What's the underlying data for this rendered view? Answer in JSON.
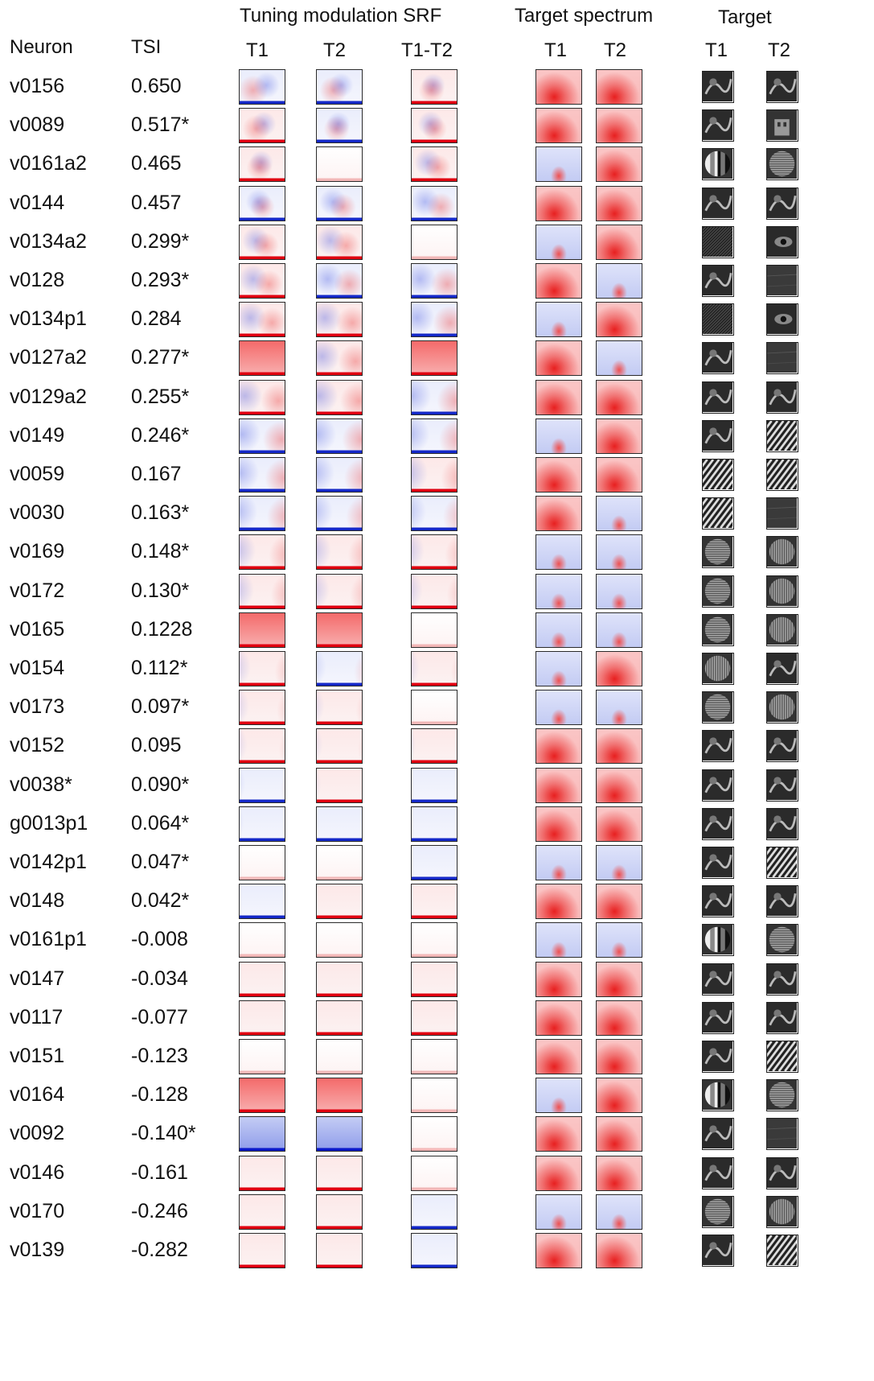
{
  "headers": {
    "group_srf": "Tuning modulation SRF",
    "group_spectrum": "Target spectrum",
    "group_target": "Target",
    "neuron": "Neuron",
    "tsi": "TSI",
    "srf_t1": "T1",
    "srf_t2": "T2",
    "srf_diff": "T1-T2",
    "spec_t1": "T1",
    "spec_t2": "T2",
    "target_t1": "T1",
    "target_t2": "T2"
  },
  "rows": [
    {
      "neuron": "v0156",
      "tsi": "0.650",
      "maps": [
        "b",
        "b",
        "r"
      ],
      "spec": [
        "r",
        "r"
      ],
      "targets": [
        "texture",
        "texture"
      ]
    },
    {
      "neuron": "v0089",
      "tsi": "0.517*",
      "maps": [
        "r",
        "b",
        "r"
      ],
      "spec": [
        "r",
        "r"
      ],
      "targets": [
        "texture",
        "building"
      ]
    },
    {
      "neuron": "v0161a2",
      "tsi": "0.465",
      "maps": [
        "r",
        "w",
        "r"
      ],
      "spec": [
        "b",
        "r"
      ],
      "targets": [
        "grating-radial",
        "grating-h"
      ]
    },
    {
      "neuron": "v0144",
      "tsi": "0.457",
      "maps": [
        "b",
        "b",
        "b"
      ],
      "spec": [
        "r",
        "r"
      ],
      "targets": [
        "texture",
        "texture"
      ]
    },
    {
      "neuron": "v0134a2",
      "tsi": "0.299*",
      "maps": [
        "r",
        "r",
        "w"
      ],
      "spec": [
        "b",
        "r"
      ],
      "targets": [
        "grating-diag",
        "eye"
      ]
    },
    {
      "neuron": "v0128",
      "tsi": "0.293*",
      "maps": [
        "r",
        "b",
        "b"
      ],
      "spec": [
        "r",
        "b"
      ],
      "targets": [
        "texture",
        "wood"
      ]
    },
    {
      "neuron": "v0134p1",
      "tsi": "0.284",
      "maps": [
        "r",
        "r",
        "b"
      ],
      "spec": [
        "b",
        "r"
      ],
      "targets": [
        "grating-diag",
        "eye"
      ]
    },
    {
      "neuron": "v0127a2",
      "tsi": "0.277*",
      "maps": [
        "R",
        "r",
        "R"
      ],
      "spec": [
        "r",
        "b"
      ],
      "targets": [
        "texture",
        "wood"
      ]
    },
    {
      "neuron": "v0129a2",
      "tsi": "0.255*",
      "maps": [
        "r",
        "r",
        "b"
      ],
      "spec": [
        "r",
        "r"
      ],
      "targets": [
        "texture",
        "texture"
      ]
    },
    {
      "neuron": "v0149",
      "tsi": "0.246*",
      "maps": [
        "b",
        "b",
        "b"
      ],
      "spec": [
        "b",
        "r"
      ],
      "targets": [
        "texture",
        "zebra"
      ]
    },
    {
      "neuron": "v0059",
      "tsi": "0.167",
      "maps": [
        "b",
        "b",
        "r"
      ],
      "spec": [
        "r",
        "r"
      ],
      "targets": [
        "stripes",
        "stripes"
      ]
    },
    {
      "neuron": "v0030",
      "tsi": "0.163*",
      "maps": [
        "b",
        "b",
        "b"
      ],
      "spec": [
        "r",
        "b"
      ],
      "targets": [
        "stripes",
        "dark"
      ]
    },
    {
      "neuron": "v0169",
      "tsi": "0.148*",
      "maps": [
        "r",
        "r",
        "r"
      ],
      "spec": [
        "b",
        "b"
      ],
      "targets": [
        "grating-h",
        "grating-v"
      ]
    },
    {
      "neuron": "v0172",
      "tsi": "0.130*",
      "maps": [
        "r",
        "r",
        "r"
      ],
      "spec": [
        "b",
        "b"
      ],
      "targets": [
        "grating-h",
        "grating-v"
      ]
    },
    {
      "neuron": "v0165",
      "tsi": "0.1228",
      "maps": [
        "R",
        "R",
        "w"
      ],
      "spec": [
        "b",
        "b"
      ],
      "targets": [
        "grating-h",
        "grating-v"
      ]
    },
    {
      "neuron": "v0154",
      "tsi": "0.112*",
      "maps": [
        "r",
        "b",
        "r"
      ],
      "spec": [
        "b",
        "r"
      ],
      "targets": [
        "grating-v",
        "texture"
      ]
    },
    {
      "neuron": "v0173",
      "tsi": "0.097*",
      "maps": [
        "r",
        "r",
        "w"
      ],
      "spec": [
        "b",
        "b"
      ],
      "targets": [
        "grating-h",
        "grating-v"
      ]
    },
    {
      "neuron": "v0152",
      "tsi": "0.095",
      "maps": [
        "r",
        "r",
        "r"
      ],
      "spec": [
        "r",
        "r"
      ],
      "targets": [
        "texture",
        "texture"
      ]
    },
    {
      "neuron": "v0038*",
      "tsi": "0.090*",
      "maps": [
        "b",
        "r",
        "b"
      ],
      "spec": [
        "r",
        "r"
      ],
      "targets": [
        "texture",
        "texture"
      ]
    },
    {
      "neuron": "g0013p1",
      "tsi": "0.064*",
      "maps": [
        "b",
        "b",
        "b"
      ],
      "spec": [
        "r",
        "r"
      ],
      "targets": [
        "texture",
        "texture"
      ]
    },
    {
      "neuron": "v0142p1",
      "tsi": "0.047*",
      "maps": [
        "w",
        "w",
        "b"
      ],
      "spec": [
        "b",
        "b"
      ],
      "targets": [
        "texture",
        "stripes"
      ]
    },
    {
      "neuron": "v0148",
      "tsi": "0.042*",
      "maps": [
        "b",
        "r",
        "r"
      ],
      "spec": [
        "r",
        "r"
      ],
      "targets": [
        "texture",
        "texture"
      ]
    },
    {
      "neuron": "v0161p1",
      "tsi": "-0.008",
      "maps": [
        "w",
        "w",
        "w"
      ],
      "spec": [
        "b",
        "b"
      ],
      "targets": [
        "grating-radial",
        "grating-h"
      ]
    },
    {
      "neuron": "v0147",
      "tsi": "-0.034",
      "maps": [
        "r",
        "r",
        "r"
      ],
      "spec": [
        "r",
        "r"
      ],
      "targets": [
        "texture",
        "texture"
      ]
    },
    {
      "neuron": "v0117",
      "tsi": "-0.077",
      "maps": [
        "r",
        "r",
        "r"
      ],
      "spec": [
        "r",
        "r"
      ],
      "targets": [
        "texture",
        "texture"
      ]
    },
    {
      "neuron": "v0151",
      "tsi": "-0.123",
      "maps": [
        "w",
        "w",
        "w"
      ],
      "spec": [
        "r",
        "r"
      ],
      "targets": [
        "texture",
        "stripes"
      ]
    },
    {
      "neuron": "v0164",
      "tsi": "-0.128",
      "maps": [
        "R",
        "R",
        "w"
      ],
      "spec": [
        "b",
        "r"
      ],
      "targets": [
        "grating-radial",
        "grating-h"
      ]
    },
    {
      "neuron": "v0092",
      "tsi": "-0.140*",
      "maps": [
        "B",
        "B",
        "w"
      ],
      "spec": [
        "r",
        "r"
      ],
      "targets": [
        "texture",
        "wood"
      ]
    },
    {
      "neuron": "v0146",
      "tsi": "-0.161",
      "maps": [
        "r",
        "r",
        "w"
      ],
      "spec": [
        "r",
        "r"
      ],
      "targets": [
        "texture",
        "texture"
      ]
    },
    {
      "neuron": "v0170",
      "tsi": "-0.246",
      "maps": [
        "r",
        "r",
        "b"
      ],
      "spec": [
        "b",
        "b"
      ],
      "targets": [
        "grating-h",
        "grating-v"
      ]
    },
    {
      "neuron": "v0139",
      "tsi": "-0.282",
      "maps": [
        "r",
        "r",
        "b"
      ],
      "spec": [
        "r",
        "r"
      ],
      "targets": [
        "texture",
        "stripes"
      ]
    }
  ],
  "colors": {
    "red": "#e8000b",
    "blue": "#0a18c8",
    "border": "#2b2b2b",
    "text": "#111111"
  }
}
